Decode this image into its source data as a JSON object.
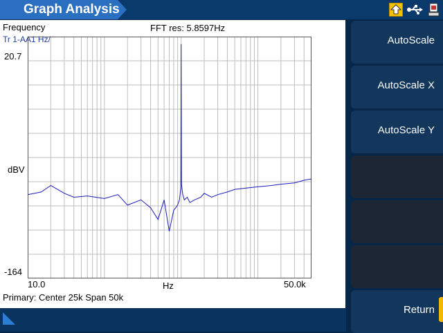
{
  "window": {
    "title": "Graph Analysis"
  },
  "status_icons": [
    "home-icon",
    "usb-icon",
    "device-icon"
  ],
  "graph": {
    "mode_label": "Frequency",
    "trace_label": "Tr 1-AA1 Hz/",
    "fft_res": "FFT res: 5.8597Hz",
    "y_top": "20.7",
    "y_unit": "dBV",
    "y_bottom": "-164",
    "x_left": "10.0",
    "x_unit": "Hz",
    "x_right": "50.0k",
    "footer": "Primary: Center 25k Span 50k"
  },
  "softkeys": {
    "autoscale": "AutoScale",
    "autoscale_x": "AutoScale X",
    "autoscale_y": "AutoScale Y",
    "return": "Return"
  },
  "colors": {
    "trace": "#1a1ab8",
    "accent": "#2a6fc0",
    "return_tab": "#f2b800"
  },
  "chart_data": {
    "type": "line",
    "x_scale": "log",
    "xlim": [
      10.0,
      50000
    ],
    "ylim": [
      -164,
      20.7
    ],
    "grid": true,
    "xlabel": "Hz",
    "ylabel": "dBV",
    "series": [
      {
        "x": [
          10,
          15,
          20,
          30,
          40,
          60,
          100,
          150,
          200,
          300,
          400,
          500,
          600,
          700,
          800,
          900,
          950,
          990,
          1000,
          1010,
          1050,
          1100,
          1200,
          1300,
          1500,
          1800,
          2000,
          2500,
          3000,
          4000,
          5000,
          7000,
          10000,
          15000,
          20000,
          30000,
          40000,
          50000
        ],
        "y": [
          -100,
          -98,
          -93,
          -99,
          -102,
          -101,
          -103,
          -100,
          -108,
          -104,
          -110,
          -119,
          -104,
          -128,
          -112,
          -108,
          -104,
          -95,
          15,
          -92,
          -100,
          -104,
          -102,
          -106,
          -104,
          -102,
          -99,
          -102,
          -100,
          -98,
          -96,
          -95,
          -94,
          -93,
          -92,
          -91,
          -89,
          -88
        ]
      }
    ]
  }
}
